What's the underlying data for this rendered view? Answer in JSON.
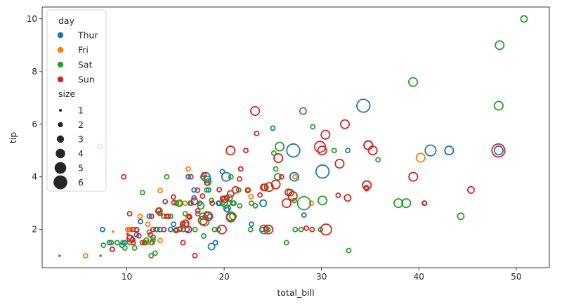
{
  "chart_data": {
    "type": "scatter",
    "xlabel": "total_bill",
    "ylabel": "tip",
    "xlim": [
      1.3,
      53.4
    ],
    "ylim": [
      0.55,
      10.45
    ],
    "xticks": [
      10,
      20,
      30,
      40,
      50
    ],
    "yticks": [
      2,
      4,
      6,
      8,
      10
    ],
    "grid": false,
    "markers": "hollow circles, size mapped to party size",
    "legend": {
      "placement": "top-left",
      "hue_title": "day",
      "size_title": "size",
      "sizes": [
        1,
        2,
        3,
        4,
        5,
        6
      ]
    },
    "series": [
      {
        "name": "Thur",
        "color": "#1f77b4",
        "points": [
          [
            27.2,
            4.0,
            4
          ],
          [
            22.8,
            2.2,
            2
          ],
          [
            19.4,
            3.0,
            2
          ],
          [
            48.2,
            5.0,
            4
          ],
          [
            20.3,
            2.75,
            2
          ],
          [
            34.3,
            6.7,
            6
          ],
          [
            41.2,
            5.0,
            5
          ],
          [
            43.1,
            5.0,
            4
          ],
          [
            16.6,
            3.0,
            2
          ],
          [
            24.0,
            3.0,
            3
          ],
          [
            16.9,
            3.5,
            2
          ],
          [
            19.5,
            3.0,
            2
          ],
          [
            17.5,
            3.0,
            2
          ],
          [
            18.5,
            2.5,
            2
          ],
          [
            20.2,
            4.0,
            4
          ],
          [
            30.1,
            4.2,
            6
          ],
          [
            19.8,
            4.2,
            2
          ],
          [
            16.3,
            4.0,
            2
          ],
          [
            27.1,
            5.0,
            6
          ],
          [
            18.1,
            4.0,
            4
          ],
          [
            18.3,
            3.9,
            3
          ],
          [
            20.3,
            2.8,
            3
          ],
          [
            18.7,
            1.35,
            3
          ],
          [
            25.0,
            5.85,
            2
          ],
          [
            32.7,
            5.0,
            2
          ],
          [
            34.8,
            5.2,
            4
          ],
          [
            19.1,
            1.5,
            2
          ],
          [
            28.2,
            2.55,
            2
          ],
          [
            8.2,
            1.5,
            2
          ],
          [
            10.3,
            2.0,
            2
          ],
          [
            7.5,
            2.0,
            2
          ],
          [
            8.5,
            1.25,
            2
          ],
          [
            9.8,
            1.5,
            2
          ],
          [
            11.4,
            2.3,
            2
          ],
          [
            12.3,
            2.5,
            2
          ],
          [
            13.0,
            2.0,
            2
          ],
          [
            14.5,
            2.0,
            2
          ],
          [
            15.4,
            2.0,
            2
          ],
          [
            16.2,
            2.0,
            2
          ],
          [
            17.3,
            2.6,
            2
          ],
          [
            10.6,
            1.6,
            2
          ],
          [
            11.9,
            1.5,
            2
          ],
          [
            13.4,
            2.0,
            2
          ],
          [
            14.8,
            2.2,
            2
          ],
          [
            12.7,
            1.7,
            2
          ],
          [
            15.8,
            2.0,
            2
          ],
          [
            18.4,
            3.5,
            2
          ],
          [
            20.9,
            3.0,
            2
          ],
          [
            23.9,
            2.0,
            2
          ],
          [
            12.6,
            1.5,
            2
          ],
          [
            9.5,
            1.4,
            2
          ],
          [
            11.0,
            1.8,
            2
          ],
          [
            13.1,
            2.0,
            2
          ],
          [
            16.9,
            3.2,
            2
          ],
          [
            19.8,
            3.0,
            2
          ]
        ]
      },
      {
        "name": "Fri",
        "color": "#ff7f0e",
        "points": [
          [
            28.97,
            3.0,
            2
          ],
          [
            22.49,
            3.5,
            2
          ],
          [
            5.75,
            1.0,
            2
          ],
          [
            16.32,
            4.3,
            2
          ],
          [
            22.75,
            3.25,
            2
          ],
          [
            40.17,
            4.73,
            4
          ],
          [
            27.28,
            4.0,
            2
          ],
          [
            12.03,
            1.5,
            2
          ],
          [
            21.01,
            3.0,
            2
          ],
          [
            12.46,
            1.5,
            2
          ],
          [
            11.35,
            2.5,
            2
          ],
          [
            15.38,
            3.0,
            2
          ],
          [
            12.16,
            2.2,
            2
          ],
          [
            13.42,
            3.48,
            2
          ],
          [
            8.58,
            1.92,
            1
          ],
          [
            15.98,
            3.0,
            2
          ],
          [
            13.42,
            1.58,
            2
          ],
          [
            16.27,
            2.5,
            2
          ],
          [
            10.09,
            2.0,
            2
          ],
          [
            10.34,
            2.0,
            2
          ]
        ]
      },
      {
        "name": "Sat",
        "color": "#2ca02c",
        "points": [
          [
            50.8,
            10.0,
            3
          ],
          [
            48.3,
            9.0,
            4
          ],
          [
            39.4,
            7.6,
            4
          ],
          [
            48.2,
            6.7,
            4
          ],
          [
            28.1,
            6.5,
            3
          ],
          [
            29.1,
            5.9,
            2
          ],
          [
            25.7,
            5.15,
            4
          ],
          [
            25.1,
            4.9,
            2
          ],
          [
            31.3,
            5.0,
            2
          ],
          [
            35.8,
            4.65,
            2
          ],
          [
            26.8,
            3.4,
            3
          ],
          [
            27.2,
            3.1,
            2
          ],
          [
            28.2,
            3.0,
            6
          ],
          [
            30.1,
            3.1,
            4
          ],
          [
            32.8,
            1.2,
            2
          ],
          [
            34.6,
            3.6,
            2
          ],
          [
            37.9,
            3.0,
            4
          ],
          [
            38.7,
            3.0,
            4
          ],
          [
            44.3,
            2.5,
            3
          ],
          [
            40.6,
            3.0,
            2
          ],
          [
            26.4,
            1.5,
            2
          ],
          [
            27.3,
            2.0,
            2
          ],
          [
            29.9,
            2.0,
            2
          ],
          [
            24.1,
            2.0,
            4
          ],
          [
            22.7,
            2.0,
            2
          ],
          [
            20.7,
            2.5,
            4
          ],
          [
            21.6,
            2.9,
            2
          ],
          [
            22.4,
            3.5,
            2
          ],
          [
            21.0,
            3.0,
            2
          ],
          [
            20.5,
            3.2,
            3
          ],
          [
            19.8,
            3.0,
            2
          ],
          [
            20.7,
            4.0,
            2
          ],
          [
            21.7,
            4.3,
            2
          ],
          [
            20.2,
            3.0,
            4
          ],
          [
            24.2,
            3.6,
            3
          ],
          [
            25.3,
            4.3,
            2
          ],
          [
            23.2,
            2.9,
            2
          ],
          [
            17.8,
            4.0,
            2
          ],
          [
            18.3,
            3.8,
            3
          ],
          [
            18.2,
            3.5,
            2
          ],
          [
            17.8,
            2.5,
            3
          ],
          [
            18.0,
            2.3,
            4
          ],
          [
            16.0,
            2.6,
            2
          ],
          [
            15.7,
            2.2,
            2
          ],
          [
            15.1,
            3.0,
            2
          ],
          [
            14.1,
            4.0,
            2
          ],
          [
            13.3,
            2.7,
            3
          ],
          [
            13.0,
            2.0,
            2
          ],
          [
            12.7,
            1.6,
            2
          ],
          [
            12.3,
            1.9,
            2
          ],
          [
            11.8,
            1.5,
            2
          ],
          [
            11.6,
            3.4,
            2
          ],
          [
            11.0,
            2.0,
            2
          ],
          [
            10.8,
            1.3,
            2
          ],
          [
            10.3,
            1.5,
            2
          ],
          [
            9.8,
            1.3,
            2
          ],
          [
            9.6,
            1.5,
            2
          ],
          [
            9.0,
            1.5,
            2
          ],
          [
            8.4,
            1.5,
            2
          ],
          [
            7.6,
            1.4,
            2
          ],
          [
            7.3,
            1.0,
            1
          ],
          [
            3.1,
            1.0,
            1
          ],
          [
            12.5,
            1.0,
            2
          ],
          [
            12.9,
            1.1,
            2
          ],
          [
            15.4,
            3.0,
            3
          ],
          [
            15.8,
            2.0,
            2
          ],
          [
            16.5,
            3.0,
            2
          ],
          [
            17.0,
            2.0,
            2
          ],
          [
            17.6,
            2.9,
            3
          ],
          [
            19.0,
            2.0,
            2
          ],
          [
            20.0,
            3.0,
            3
          ],
          [
            21.5,
            3.5,
            2
          ],
          [
            22.8,
            3.0,
            2
          ],
          [
            24.5,
            2.0,
            2
          ],
          [
            25.5,
            4.0,
            3
          ],
          [
            27.9,
            2.0,
            2
          ],
          [
            19.4,
            2.0,
            2
          ],
          [
            18.7,
            3.1,
            2
          ],
          [
            16.4,
            2.5,
            2
          ],
          [
            14.5,
            2.5,
            2
          ],
          [
            13.8,
            2.5,
            2
          ],
          [
            12.0,
            1.6,
            2
          ],
          [
            20.9,
            2.5,
            3
          ],
          [
            17.9,
            1.75,
            2
          ],
          [
            18.2,
            2.6,
            2
          ],
          [
            15.1,
            2.0,
            2
          ],
          [
            16.1,
            2.2,
            2
          ]
        ]
      },
      {
        "name": "Sun",
        "color": "#d62728",
        "points": [
          [
            48.17,
            5.0,
            6
          ],
          [
            34.81,
            5.2,
            4
          ],
          [
            32.4,
            6.0,
            4
          ],
          [
            30.46,
            2.0,
            5
          ],
          [
            23.33,
            5.65,
            2
          ],
          [
            23.17,
            6.5,
            4
          ],
          [
            35.26,
            5.0,
            4
          ],
          [
            30.4,
            5.6,
            4
          ],
          [
            29.85,
            5.14,
            5
          ],
          [
            30.06,
            5.0,
            4
          ],
          [
            20.65,
            5.0,
            4
          ],
          [
            31.85,
            4.5,
            4
          ],
          [
            25.56,
            4.71,
            4
          ],
          [
            34.63,
            3.55,
            2
          ],
          [
            34.65,
            3.68,
            4
          ],
          [
            39.42,
            4.0,
            4
          ],
          [
            40.55,
            3.0,
            2
          ],
          [
            45.35,
            3.5,
            3
          ],
          [
            31.71,
            3.3,
            2
          ],
          [
            32.68,
            3.2,
            3
          ],
          [
            24.59,
            3.61,
            4
          ],
          [
            25.29,
            3.71,
            4
          ],
          [
            26.59,
            3.41,
            3
          ],
          [
            27.05,
            3.27,
            4
          ],
          [
            28.44,
            2.05,
            2
          ],
          [
            29.03,
            2.0,
            2
          ],
          [
            25.89,
            4.0,
            2
          ],
          [
            24.06,
            3.6,
            3
          ],
          [
            24.27,
            2.03,
            2
          ],
          [
            24.55,
            2.0,
            4
          ],
          [
            23.68,
            3.31,
            2
          ],
          [
            22.42,
            3.48,
            2
          ],
          [
            21.58,
            3.92,
            2
          ],
          [
            21.16,
            3.5,
            3
          ],
          [
            20.29,
            3.21,
            2
          ],
          [
            20.65,
            3.35,
            3
          ],
          [
            20.69,
            2.45,
            4
          ],
          [
            19.82,
            3.18,
            2
          ],
          [
            19.49,
            3.51,
            2
          ],
          [
            20.08,
            3.15,
            3
          ],
          [
            18.35,
            2.5,
            4
          ],
          [
            17.92,
            4.08,
            2
          ],
          [
            17.78,
            3.27,
            2
          ],
          [
            17.81,
            2.34,
            4
          ],
          [
            17.29,
            2.71,
            2
          ],
          [
            16.99,
            1.01,
            2
          ],
          [
            16.58,
            4.0,
            2
          ],
          [
            16.93,
            3.07,
            3
          ],
          [
            16.45,
            2.47,
            2
          ],
          [
            16.4,
            2.5,
            2
          ],
          [
            16.31,
            2.0,
            3
          ],
          [
            16.04,
            2.24,
            3
          ],
          [
            15.77,
            2.23,
            2
          ],
          [
            15.48,
            2.02,
            2
          ],
          [
            15.04,
            1.96,
            2
          ],
          [
            14.83,
            3.02,
            2
          ],
          [
            14.78,
            3.23,
            2
          ],
          [
            14.07,
            2.5,
            2
          ],
          [
            13.94,
            3.06,
            2
          ],
          [
            13.39,
            2.61,
            2
          ],
          [
            13.28,
            2.72,
            2
          ],
          [
            12.69,
            2.0,
            2
          ],
          [
            12.43,
            1.8,
            2
          ],
          [
            12.54,
            2.5,
            2
          ],
          [
            11.59,
            1.5,
            2
          ],
          [
            11.24,
            1.76,
            2
          ],
          [
            11.02,
            1.98,
            2
          ],
          [
            10.65,
            1.5,
            2
          ],
          [
            10.63,
            2.0,
            2
          ],
          [
            10.59,
            1.61,
            2
          ],
          [
            10.34,
            1.66,
            3
          ],
          [
            10.29,
            2.6,
            2
          ],
          [
            10.27,
            1.71,
            2
          ],
          [
            10.07,
            1.83,
            1
          ],
          [
            9.68,
            4.0,
            2
          ],
          [
            8.51,
            1.25,
            2
          ],
          [
            7.25,
            5.15,
            2
          ],
          [
            14.26,
            2.5,
            2
          ],
          [
            15.77,
            1.5,
            2
          ],
          [
            18.24,
            3.76,
            2
          ],
          [
            21.7,
            4.3,
            2
          ],
          [
            19.77,
            2.0,
            4
          ],
          [
            22.23,
            5.0,
            2
          ],
          [
            26.41,
            3.0,
            4
          ],
          [
            17.26,
            3.49,
            2
          ],
          [
            18.78,
            3.0,
            2
          ],
          [
            13.81,
            2.0,
            2
          ]
        ]
      }
    ]
  }
}
